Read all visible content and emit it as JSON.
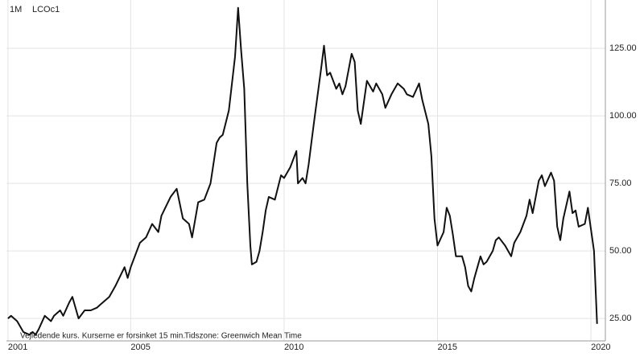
{
  "chart_data": {
    "type": "line",
    "period": "1M",
    "symbol": "LCOc1",
    "footnote": "Vejledende kurs. Kurserne er forsinket 15 min.",
    "timezone": "Tidszone: Greenwich Mean Time",
    "x": [
      2001.0,
      2001.1,
      2001.3,
      2001.5,
      2001.7,
      2001.8,
      2001.9,
      2002.0,
      2002.2,
      2002.4,
      2002.5,
      2002.7,
      2002.8,
      2003.0,
      2003.1,
      2003.3,
      2003.5,
      2003.7,
      2003.9,
      2004.0,
      2004.3,
      2004.5,
      2004.8,
      2004.9,
      2005.0,
      2005.3,
      2005.5,
      2005.7,
      2005.9,
      2006.0,
      2006.3,
      2006.5,
      2006.7,
      2006.9,
      2007.0,
      2007.2,
      2007.4,
      2007.6,
      2007.8,
      2007.9,
      2008.0,
      2008.2,
      2008.4,
      2008.5,
      2008.6,
      2008.7,
      2008.8,
      2008.9,
      2008.95,
      2009.1,
      2009.2,
      2009.3,
      2009.4,
      2009.5,
      2009.7,
      2009.9,
      2010.0,
      2010.2,
      2010.4,
      2010.45,
      2010.6,
      2010.7,
      2010.8,
      2010.9,
      2011.0,
      2011.2,
      2011.3,
      2011.4,
      2011.5,
      2011.7,
      2011.8,
      2011.9,
      2012.0,
      2012.2,
      2012.3,
      2012.4,
      2012.5,
      2012.7,
      2012.9,
      2013.0,
      2013.2,
      2013.3,
      2013.5,
      2013.7,
      2013.9,
      2014.0,
      2014.2,
      2014.4,
      2014.5,
      2014.7,
      2014.8,
      2014.9,
      2015.0,
      2015.2,
      2015.3,
      2015.4,
      2015.5,
      2015.6,
      2015.8,
      2015.9,
      2016.0,
      2016.1,
      2016.2,
      2016.4,
      2016.5,
      2016.6,
      2016.8,
      2016.9,
      2017.0,
      2017.2,
      2017.4,
      2017.5,
      2017.7,
      2017.9,
      2018.0,
      2018.1,
      2018.3,
      2018.4,
      2018.5,
      2018.7,
      2018.8,
      2018.9,
      2019.0,
      2019.1,
      2019.3,
      2019.4,
      2019.5,
      2019.6,
      2019.8,
      2019.9,
      2020.0,
      2020.1,
      2020.2
    ],
    "series": [
      {
        "color": "#111111",
        "values": [
          25,
          26,
          24,
          20,
          19,
          20,
          19,
          21,
          26,
          24,
          26,
          28,
          26,
          31,
          33,
          25,
          28,
          28,
          29,
          30,
          33,
          37,
          44,
          40,
          44,
          53,
          55,
          60,
          57,
          63,
          70,
          73,
          62,
          60,
          55,
          68,
          69,
          75,
          90,
          92,
          93,
          102,
          122,
          140,
          124,
          110,
          75,
          52,
          45,
          46,
          50,
          57,
          65,
          70,
          69,
          78,
          77,
          81,
          87,
          75,
          77,
          75,
          82,
          91,
          100,
          117,
          126,
          115,
          116,
          110,
          112,
          108,
          111,
          123,
          120,
          102,
          97,
          113,
          109,
          112,
          108,
          103,
          108,
          112,
          110,
          108,
          107,
          112,
          106,
          97,
          85,
          62,
          52,
          57,
          66,
          63,
          56,
          48,
          48,
          44,
          37,
          35,
          40,
          48,
          45,
          46,
          50,
          54,
          55,
          52,
          48,
          53,
          57,
          63,
          69,
          64,
          76,
          78,
          74,
          79,
          76,
          59,
          54,
          62,
          72,
          64,
          65,
          59,
          60,
          66,
          58,
          50,
          23
        ]
      }
    ],
    "xlim": [
      2000.95,
      2020.47
    ],
    "ylim": [
      16.7,
      142.9
    ],
    "xticks": [
      2001,
      2005,
      2010,
      2015,
      2020
    ],
    "yticks": [
      {
        "value": 25,
        "label": "25.00"
      },
      {
        "value": 50,
        "label": "50.00"
      },
      {
        "value": 75,
        "label": "75.00"
      },
      {
        "value": 100,
        "label": "100.00"
      },
      {
        "value": 125,
        "label": "125.00"
      }
    ],
    "grid": true
  }
}
